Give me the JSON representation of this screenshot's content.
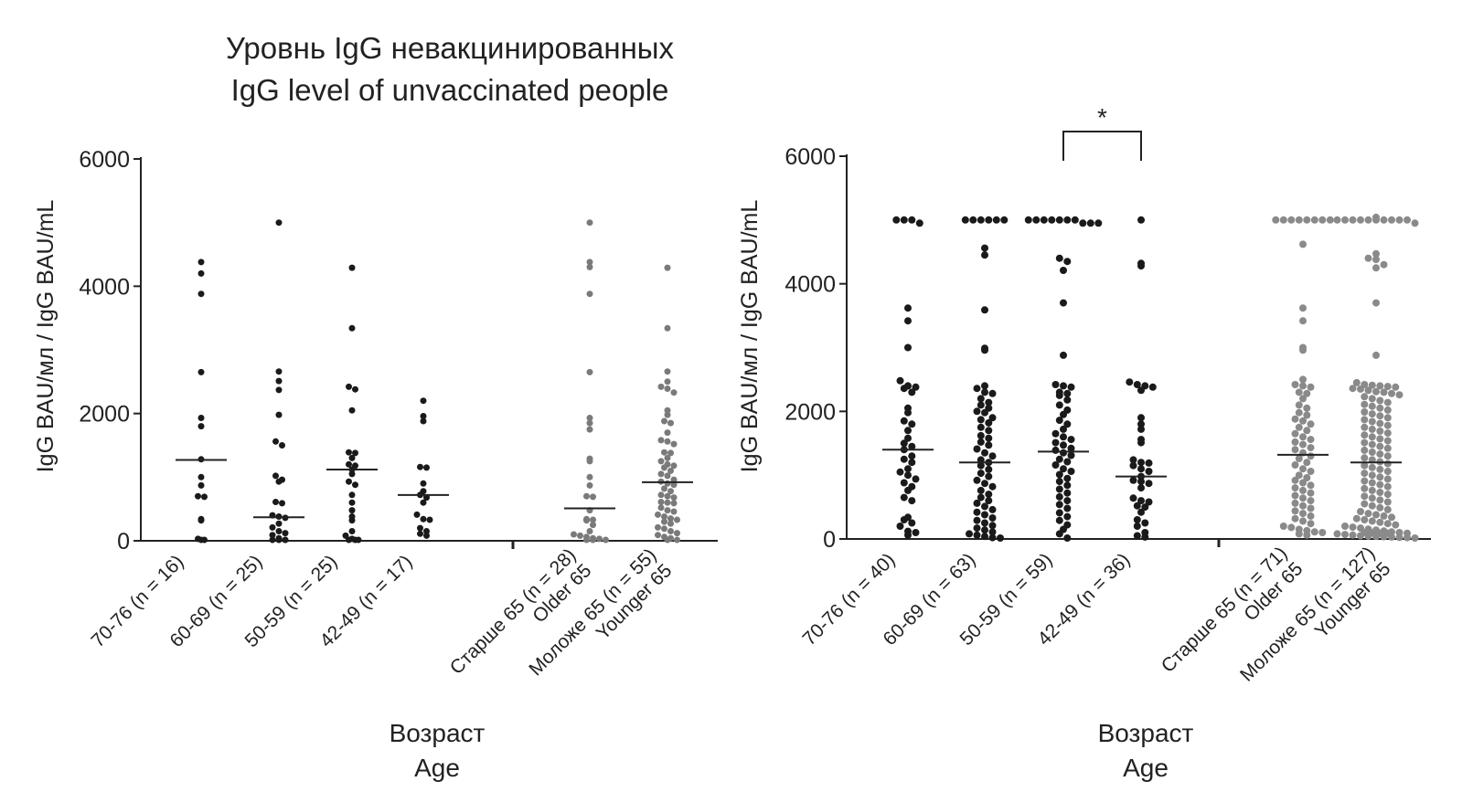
{
  "chart_data": [
    {
      "type": "scatter",
      "title": "Уровнь IgG невакцинированных",
      "subtitle": "IgG level of unvaccinated people",
      "ylabel": "IgG BAU/мл / IgG BAU/mL",
      "xlabel": "Возраст",
      "xlabel_en": "Age",
      "ylim": [
        0,
        6000
      ],
      "yticks": [
        0,
        2000,
        4000,
        6000
      ],
      "grid": false,
      "groups": [
        {
          "label_lines": [
            "70-76 (n = 16)"
          ],
          "color": "#1a1a1a",
          "median": 1270,
          "values": [
            4380,
            4200,
            3880,
            2650,
            1930,
            1800,
            1280,
            1000,
            870,
            700,
            690,
            340,
            320,
            30,
            10,
            0
          ]
        },
        {
          "label_lines": [
            "60-69 (n = 25)"
          ],
          "color": "#1a1a1a",
          "median": 370,
          "values": [
            5000,
            2660,
            2510,
            2370,
            1980,
            1560,
            1500,
            1020,
            960,
            930,
            610,
            590,
            400,
            380,
            360,
            270,
            210,
            150,
            120,
            90,
            40,
            10,
            0,
            0,
            0
          ]
        },
        {
          "label_lines": [
            "50-59 (n = 25)"
          ],
          "color": "#1a1a1a",
          "median": 1120,
          "values": [
            4290,
            3340,
            2420,
            2380,
            2050,
            1390,
            1380,
            1300,
            1200,
            1180,
            1120,
            1050,
            930,
            880,
            720,
            600,
            480,
            380,
            320,
            150,
            80,
            30,
            10,
            0,
            0
          ]
        },
        {
          "label_lines": [
            "42-49 (n = 17)"
          ],
          "color": "#1a1a1a",
          "median": 720,
          "values": [
            2200,
            1960,
            1880,
            1160,
            1150,
            900,
            780,
            720,
            680,
            600,
            410,
            340,
            330,
            200,
            150,
            110,
            80
          ]
        },
        {
          "label_lines": [
            "Старше 65 (n = 28)",
            "Older 65"
          ],
          "color": "#7a7a7a",
          "median": 510,
          "values": [
            5000,
            4380,
            4300,
            3880,
            2650,
            1930,
            1850,
            1750,
            1290,
            1250,
            1000,
            870,
            700,
            690,
            480,
            340,
            330,
            320,
            250,
            150,
            100,
            80,
            60,
            40,
            30,
            10,
            0,
            0
          ]
        },
        {
          "label_lines": [
            "Моложе 65 (n = 55)",
            "Younger 65"
          ],
          "color": "#7a7a7a",
          "median": 920,
          "values": [
            4290,
            3340,
            2660,
            2500,
            2420,
            2390,
            2330,
            2050,
            1980,
            1880,
            1850,
            1700,
            1580,
            1560,
            1520,
            1390,
            1380,
            1300,
            1250,
            1200,
            1180,
            1150,
            1100,
            1050,
            1020,
            960,
            930,
            900,
            880,
            820,
            780,
            720,
            700,
            680,
            610,
            600,
            590,
            520,
            480,
            460,
            410,
            380,
            350,
            330,
            300,
            270,
            210,
            190,
            150,
            120,
            90,
            60,
            40,
            10,
            0
          ]
        }
      ]
    },
    {
      "type": "scatter",
      "ylabel": "IgG BAU/мл / IgG BAU/mL",
      "xlabel": "Возраст",
      "xlabel_en": "Age",
      "ylim": [
        0,
        6000
      ],
      "yticks": [
        0,
        2000,
        4000,
        6000
      ],
      "grid": false,
      "significance": {
        "between": [
          2,
          3
        ],
        "label": "*"
      },
      "groups": [
        {
          "label_lines": [
            "70-76 (n = 40)"
          ],
          "color": "#1a1a1a",
          "median": 1400,
          "values": [
            5000,
            5000,
            5000,
            4950,
            3620,
            3420,
            3000,
            2480,
            2400,
            2380,
            2360,
            2300,
            2050,
            1980,
            1850,
            1800,
            1700,
            1580,
            1500,
            1450,
            1400,
            1300,
            1250,
            1200,
            1100,
            1050,
            1000,
            940,
            880,
            820,
            760,
            650,
            600,
            340,
            300,
            250,
            200,
            120,
            100,
            60
          ]
        },
        {
          "label_lines": [
            "60-69 (n = 63)"
          ],
          "color": "#1a1a1a",
          "median": 1200,
          "values": [
            5000,
            5000,
            5000,
            5000,
            5000,
            5000,
            4560,
            4450,
            3590,
            2990,
            2960,
            2400,
            2360,
            2300,
            2280,
            2200,
            2140,
            2100,
            2050,
            2000,
            1980,
            1900,
            1870,
            1820,
            1750,
            1700,
            1620,
            1580,
            1520,
            1470,
            1410,
            1350,
            1300,
            1240,
            1200,
            1150,
            1090,
            1030,
            980,
            920,
            870,
            820,
            760,
            700,
            650,
            600,
            560,
            510,
            460,
            420,
            380,
            330,
            290,
            250,
            210,
            170,
            140,
            110,
            80,
            60,
            40,
            20,
            10
          ]
        },
        {
          "label_lines": [
            "50-59 (n = 59)"
          ],
          "color": "#1a1a1a",
          "median": 1370,
          "values": [
            5000,
            5000,
            5000,
            5000,
            5000,
            5000,
            5000,
            4950,
            4950,
            4950,
            4400,
            4350,
            4210,
            3700,
            2880,
            2420,
            2400,
            2380,
            2300,
            2280,
            2250,
            2180,
            2100,
            2020,
            1950,
            1860,
            1800,
            1720,
            1650,
            1600,
            1560,
            1510,
            1470,
            1420,
            1390,
            1350,
            1310,
            1250,
            1210,
            1160,
            1100,
            1060,
            1010,
            950,
            900,
            840,
            780,
            720,
            660,
            600,
            540,
            480,
            410,
            350,
            290,
            220,
            150,
            80,
            10
          ]
        },
        {
          "label_lines": [
            "42-49 (n = 36)"
          ],
          "color": "#1a1a1a",
          "median": 980,
          "values": [
            5000,
            4320,
            4280,
            2460,
            2420,
            2400,
            2380,
            2330,
            1900,
            1800,
            1720,
            1560,
            1510,
            1240,
            1200,
            1190,
            1150,
            1100,
            1060,
            980,
            920,
            900,
            870,
            800,
            640,
            600,
            580,
            520,
            500,
            420,
            300,
            250,
            200,
            100,
            50,
            30
          ]
        },
        {
          "label_lines": [
            "Старше 65 (n = 71)",
            "Older 65"
          ],
          "color": "#8a8a8a",
          "median": 1320,
          "values": [
            5000,
            5000,
            5000,
            5000,
            5000,
            5000,
            5000,
            5000,
            4620,
            3620,
            3420,
            3000,
            2960,
            2500,
            2420,
            2400,
            2380,
            2300,
            2280,
            2200,
            2100,
            2050,
            1980,
            1940,
            1880,
            1850,
            1800,
            1750,
            1700,
            1650,
            1600,
            1560,
            1520,
            1480,
            1430,
            1400,
            1350,
            1300,
            1260,
            1200,
            1160,
            1100,
            1060,
            1000,
            960,
            920,
            880,
            840,
            800,
            760,
            720,
            680,
            640,
            600,
            560,
            520,
            480,
            440,
            400,
            360,
            320,
            280,
            240,
            200,
            180,
            150,
            130,
            110,
            100,
            80,
            60
          ]
        },
        {
          "label_lines": [
            "Моложе 65 (n = 127)",
            "Younger 65"
          ],
          "color": "#8a8a8a",
          "median": 1200,
          "values": [
            5000,
            5000,
            5000,
            5000,
            5000,
            5000,
            5000,
            5000,
            5000,
            5000,
            4950,
            4950,
            4470,
            4400,
            4380,
            4300,
            4250,
            3700,
            2880,
            2450,
            2420,
            2410,
            2400,
            2390,
            2380,
            2360,
            2350,
            2330,
            2310,
            2300,
            2280,
            2260,
            2230,
            2200,
            2170,
            2140,
            2110,
            2080,
            2050,
            2020,
            1990,
            1960,
            1930,
            1900,
            1870,
            1840,
            1810,
            1780,
            1750,
            1720,
            1690,
            1660,
            1630,
            1600,
            1570,
            1540,
            1510,
            1480,
            1450,
            1420,
            1390,
            1360,
            1330,
            1300,
            1270,
            1240,
            1210,
            1180,
            1150,
            1120,
            1090,
            1060,
            1030,
            1000,
            970,
            940,
            910,
            880,
            850,
            820,
            790,
            760,
            730,
            700,
            670,
            640,
            610,
            580,
            550,
            520,
            490,
            460,
            430,
            400,
            380,
            360,
            340,
            320,
            300,
            280,
            260,
            240,
            220,
            200,
            185,
            170,
            155,
            140,
            125,
            110,
            100,
            90,
            80,
            70,
            60,
            50,
            45,
            40,
            35,
            30,
            25,
            20,
            15,
            10,
            5,
            0,
            0
          ]
        }
      ]
    }
  ]
}
